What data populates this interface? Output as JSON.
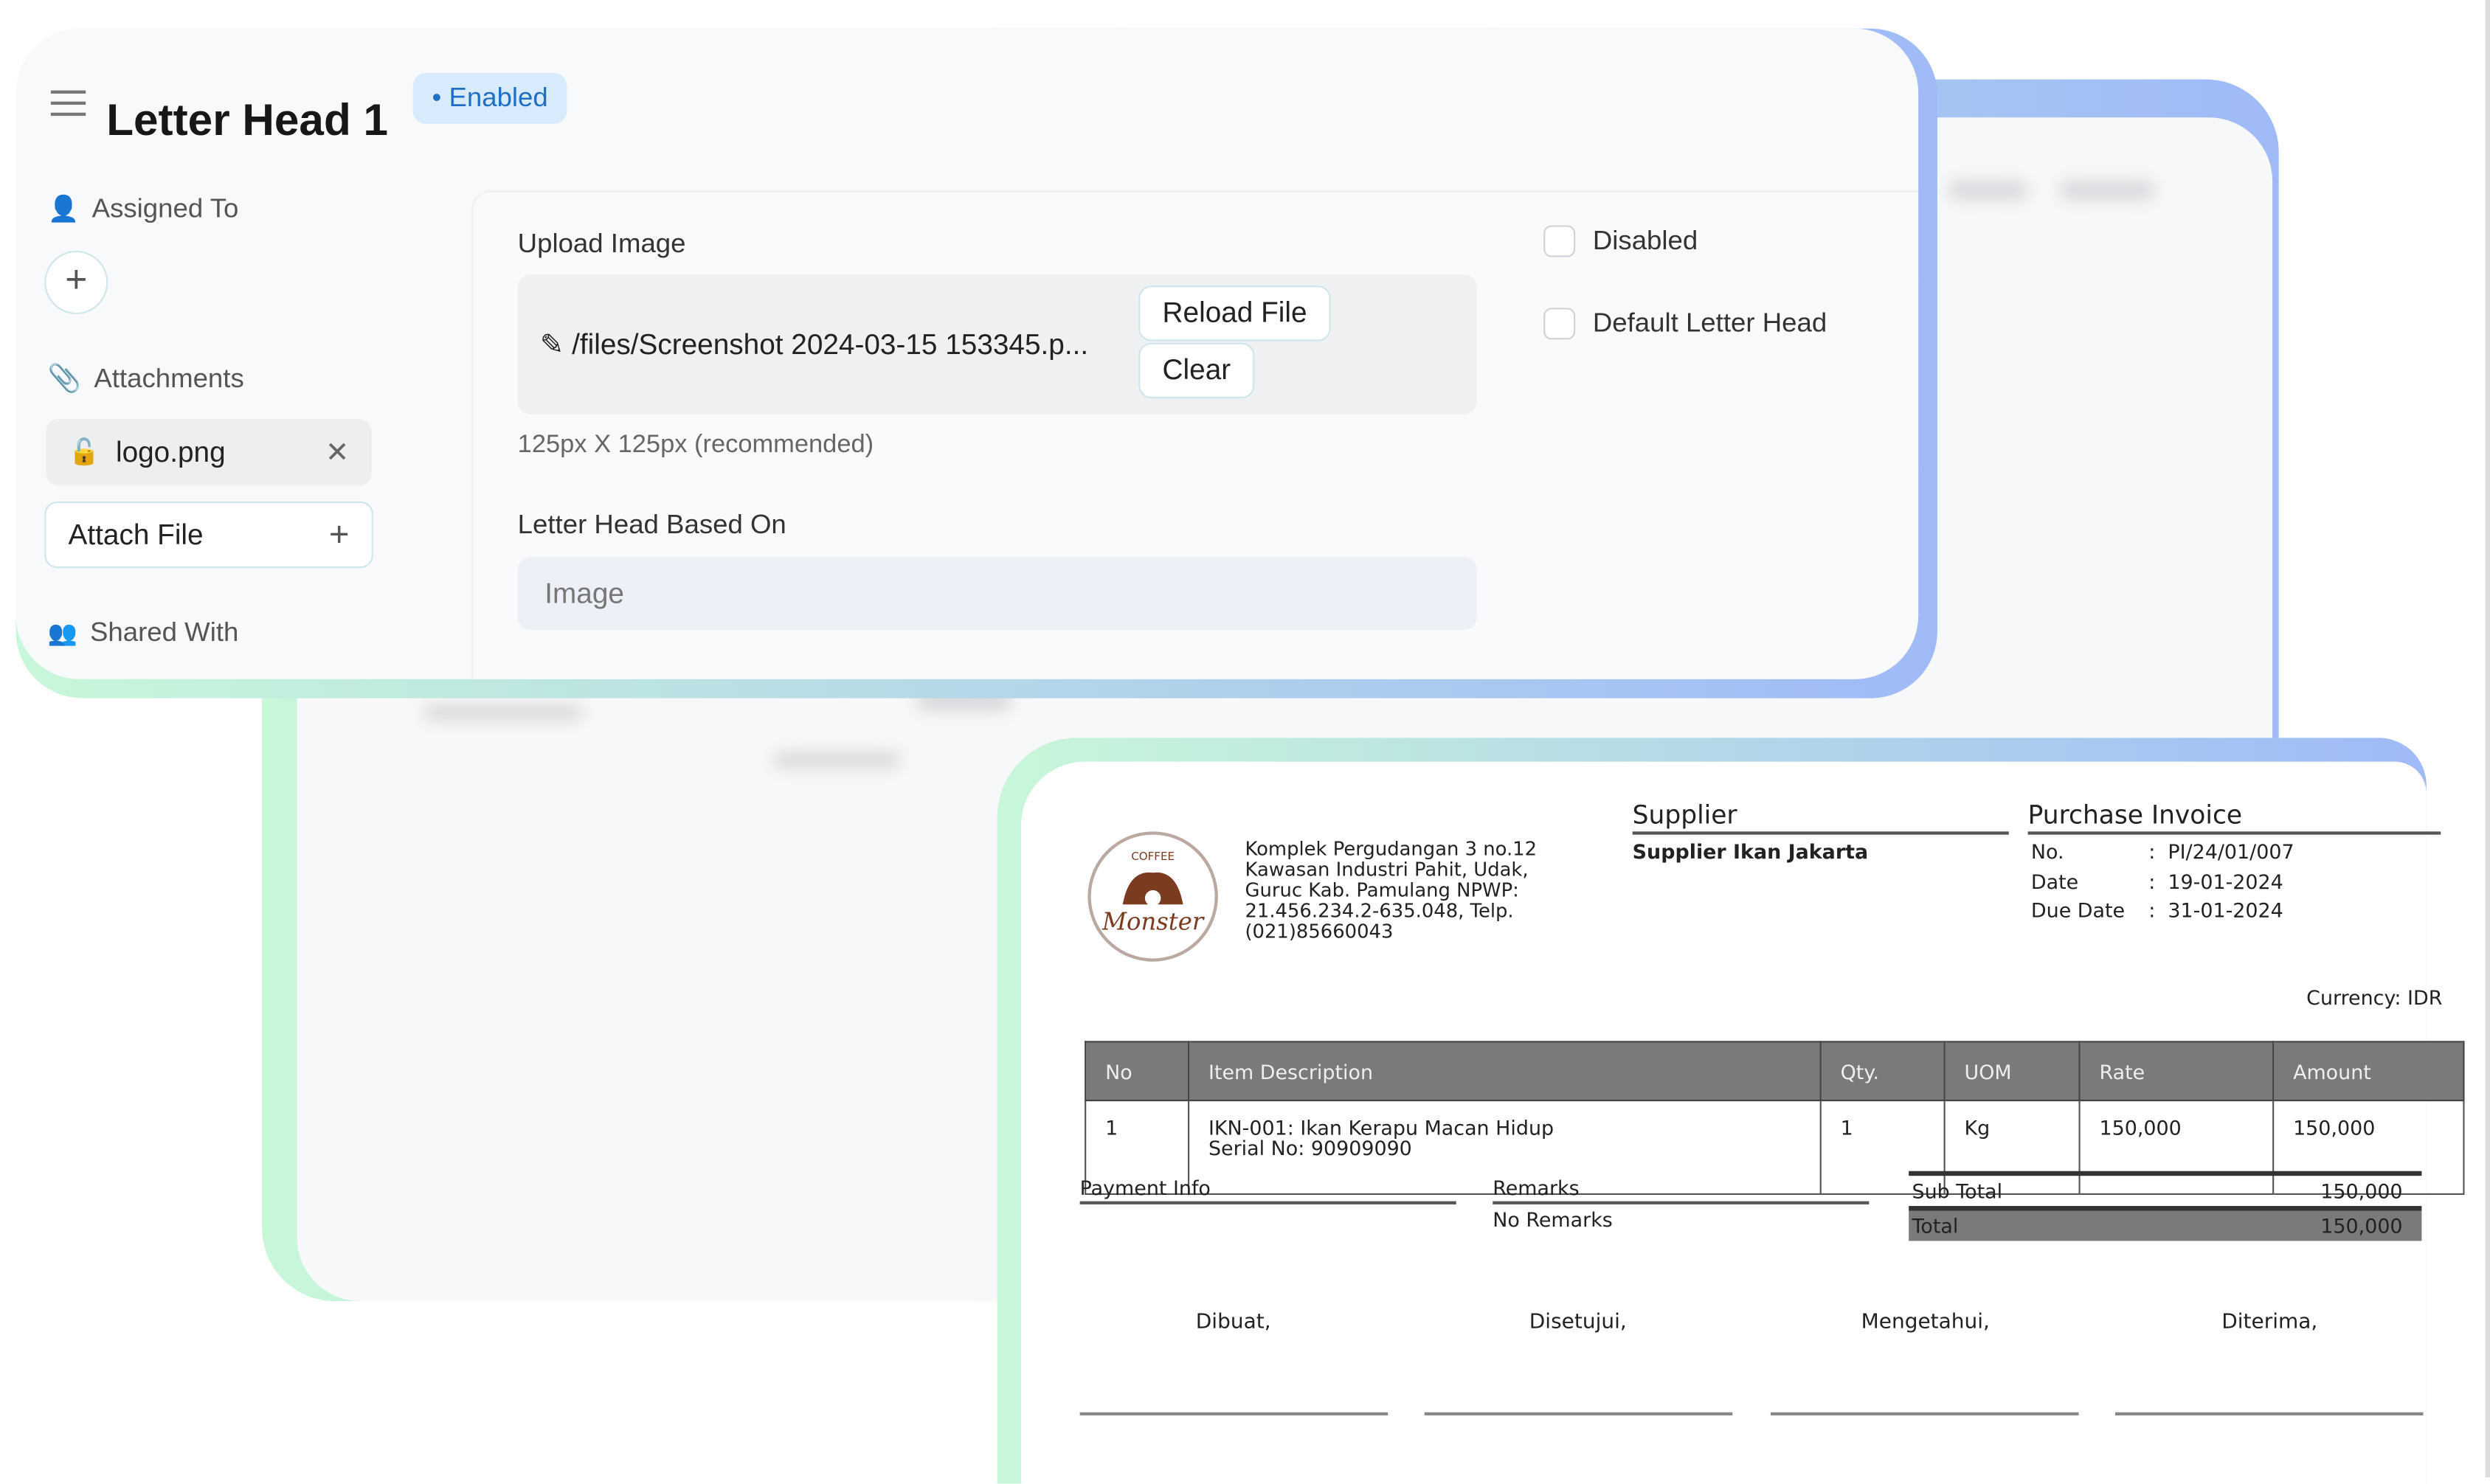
{
  "header": {
    "title": "Letter Head 1",
    "status": "Enabled"
  },
  "sidebar": {
    "assigned_to": "Assigned To",
    "attachments": "Attachments",
    "attachment_items": [
      {
        "name": "logo.png"
      }
    ],
    "attach_file": "Attach File",
    "shared_with": "Shared With"
  },
  "form": {
    "upload_label": "Upload Image",
    "file_path": "/files/Screenshot 2024-03-15 153345.p...",
    "reload_label": "Reload File",
    "clear_label": "Clear",
    "upload_hint": "125px X 125px (recommended)",
    "based_on_label": "Letter Head Based On",
    "based_on_value": "Image",
    "disabled_label": "Disabled",
    "disabled_checked": false,
    "default_label": "Default Letter Head",
    "default_checked": false
  },
  "invoice": {
    "logo_text": "Coffee Monster",
    "address": [
      "Komplek Pergudangan 3 no.12",
      "Kawasan Industri Pahit, Udak,",
      "Guruc Kab. Pamulang NPWP:",
      "21.456.234.2-635.048, Telp.",
      "(021)85660043"
    ],
    "supplier_heading": "Supplier",
    "supplier_name": "Supplier Ikan Jakarta",
    "doc_heading": "Purchase Invoice",
    "meta": [
      {
        "label": "No.",
        "value": "PI/24/01/007"
      },
      {
        "label": "Date",
        "value": "19-01-2024"
      },
      {
        "label": "Due Date",
        "value": "31-01-2024"
      }
    ],
    "currency": "Currency: IDR",
    "columns": [
      "No",
      "Item Description",
      "Qty.",
      "UOM",
      "Rate",
      "Amount"
    ],
    "rows": [
      {
        "no": "1",
        "desc": "IKN-001: Ikan Kerapu Macan Hidup",
        "serial": "Serial No: 90909090",
        "qty": "1",
        "uom": "Kg",
        "rate": "150,000",
        "amount": "150,000"
      }
    ],
    "payment_info": "Payment Info",
    "remarks_heading": "Remarks",
    "remarks": "No Remarks",
    "subtotal_label": "Sub Total",
    "subtotal": "150,000",
    "total_label": "Total",
    "total": "150,000",
    "signatures": [
      "Dibuat,",
      "Disetujui,",
      "Mengetahui,",
      "Diterima,"
    ]
  },
  "colors": {
    "accent": "#1f6fc4",
    "badge_bg": "#d8ebfc",
    "table_header": "#7a7a7a",
    "gradient_start": "#c8f7d9",
    "gradient_end": "#9fbaf7"
  }
}
